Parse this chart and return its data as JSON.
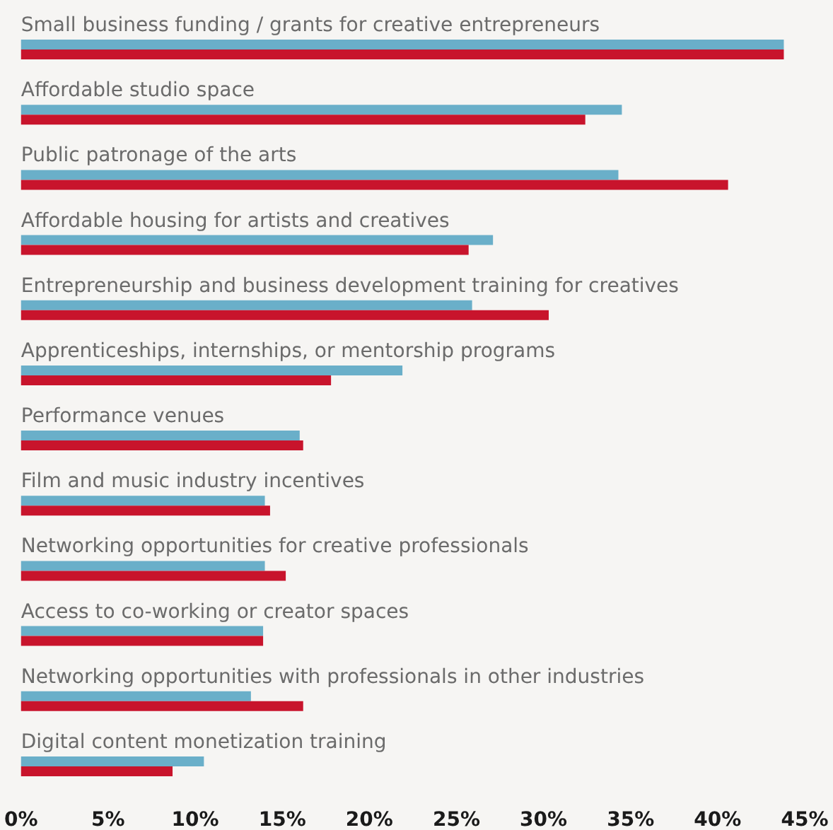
{
  "chart_data": {
    "type": "bar",
    "orientation": "horizontal",
    "categories": [
      "Small business funding / grants for creative entrepreneurs",
      "Affordable studio space",
      "Public patronage of the arts",
      "Affordable housing for artists and creatives",
      "Entrepreneurship and business development training for creatives",
      "Apprenticeships, internships, or mentorship programs",
      "Performance venues",
      "Film and music industry incentives",
      "Networking opportunities for creative professionals",
      "Access to co-working or creator spaces",
      "Networking opportunities with professionals in other industries",
      "Digital content monetization training"
    ],
    "series": [
      {
        "color": "#6aafc9",
        "values": [
          43.8,
          34.5,
          34.3,
          27.1,
          25.9,
          21.9,
          16.0,
          14.0,
          14.0,
          13.9,
          13.2,
          10.5
        ]
      },
      {
        "color": "#c8142c",
        "values": [
          43.8,
          32.4,
          40.6,
          25.7,
          30.3,
          17.8,
          16.2,
          14.3,
          15.2,
          13.9,
          16.2,
          8.7
        ]
      }
    ],
    "xlim": [
      0,
      45
    ],
    "xticks": [
      {
        "value": 0,
        "label": "0%"
      },
      {
        "value": 5,
        "label": "5%"
      },
      {
        "value": 10,
        "label": "10%"
      },
      {
        "value": 15,
        "label": "15%"
      },
      {
        "value": 20,
        "label": "20%"
      },
      {
        "value": 25,
        "label": "25%"
      },
      {
        "value": 30,
        "label": "30%"
      },
      {
        "value": 35,
        "label": "35%"
      },
      {
        "value": 40,
        "label": "40%"
      },
      {
        "value": 45,
        "label": "45%"
      }
    ],
    "grid": false
  }
}
